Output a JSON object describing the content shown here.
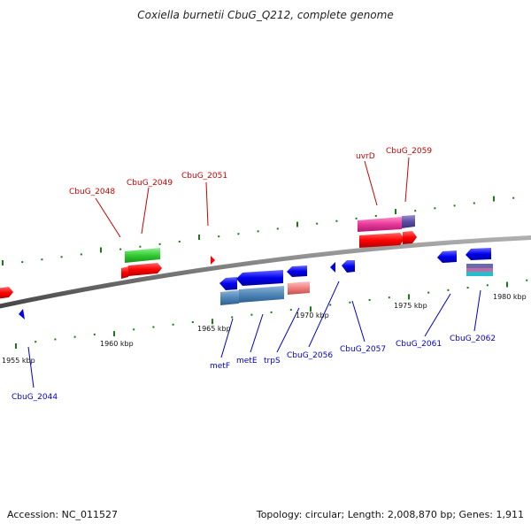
{
  "title": "Coxiella burnetii CbuG_Q212, complete genome",
  "footer": {
    "accession": "Accession: NC_011527",
    "summary": "Topology: circular; Length: 2,008,870 bp; Genes: 1,911"
  },
  "scale_labels": [
    "1955 kbp",
    "1960 kbp",
    "1965 kbp",
    "1970 kbp",
    "1975 kbp",
    "1980 kbp"
  ],
  "forward_gene_labels": [
    "CbuG_2048",
    "CbuG_2049",
    "CbuG_2051",
    "uvrD",
    "CbuG_2059"
  ],
  "reverse_gene_labels": [
    "CbuG_2044",
    "metF",
    "metE",
    "trpS",
    "CbuG_2056",
    "CbuG_2057",
    "CbuG_2061",
    "CbuG_2062"
  ],
  "colors": {
    "forward_label": "#cc0000",
    "reverse_label": "#0000cc",
    "cds_forward": "#ff0000",
    "cds_reverse": "#0000ee",
    "tick": "#1a7a1a",
    "backbone": "#777777"
  }
}
